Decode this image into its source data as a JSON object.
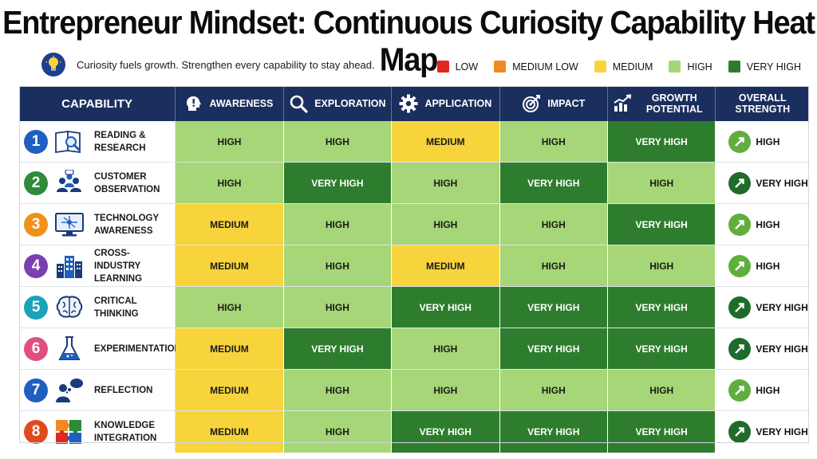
{
  "title": "Entrepreneur Mindset: Continuous Curiosity Capability Heat Map",
  "subtitle": "Curiosity fuels growth. Strengthen every capability to stay ahead.",
  "icons": {
    "subtitle": "lightbulb-icon"
  },
  "legend": [
    {
      "label": "LOW",
      "color": "#e0281e"
    },
    {
      "label": "MEDIUM LOW",
      "color": "#f08a24"
    },
    {
      "label": "MEDIUM",
      "color": "#f8d43c"
    },
    {
      "label": "HIGH",
      "color": "#a6d677"
    },
    {
      "label": "VERY HIGH",
      "color": "#2e7d2e"
    }
  ],
  "level_colors": {
    "LOW": {
      "bg": "#e0281e",
      "fg": "#ffffff"
    },
    "MEDIUM LOW": {
      "bg": "#f08a24",
      "fg": "#111111"
    },
    "MEDIUM": {
      "bg": "#f8d43c",
      "fg": "#1a1a1a"
    },
    "HIGH": {
      "bg": "#a6d677",
      "fg": "#1a1a1a"
    },
    "VERY HIGH": {
      "bg": "#2e7d2e",
      "fg": "#ffffff"
    }
  },
  "header_color": "#1b2f5e",
  "chart_data": {
    "type": "heatmap",
    "title": "Entrepreneur Mindset: Continuous Curiosity Capability Heat Map",
    "subtitle": "Curiosity fuels growth. Strengthen every capability to stay ahead.",
    "row_header": "CAPABILITY",
    "columns": [
      {
        "label": "AWARENESS",
        "icon": "head-exclamation-icon"
      },
      {
        "label": "EXPLORATION",
        "icon": "magnifier-icon"
      },
      {
        "label": "APPLICATION",
        "icon": "gear-icon"
      },
      {
        "label": "IMPACT",
        "icon": "target-icon"
      },
      {
        "label": "GROWTH POTENTIAL",
        "icon": "bar-chart-icon"
      }
    ],
    "overall_header": "OVERALL STRENGTH",
    "scale": [
      "LOW",
      "MEDIUM LOW",
      "MEDIUM",
      "HIGH",
      "VERY HIGH"
    ],
    "rows": [
      {
        "num": "1",
        "label": "READING & RESEARCH",
        "icon": "book-magnifier-icon",
        "num_color": "#1f5fbf",
        "values": [
          "HIGH",
          "HIGH",
          "MEDIUM",
          "HIGH",
          "VERY HIGH"
        ],
        "overall": "HIGH"
      },
      {
        "num": "2",
        "label": "CUSTOMER OBSERVATION",
        "icon": "people-icon",
        "num_color": "#2e8b3a",
        "values": [
          "HIGH",
          "VERY HIGH",
          "HIGH",
          "VERY HIGH",
          "HIGH"
        ],
        "overall": "VERY HIGH"
      },
      {
        "num": "3",
        "label": "TECHNOLOGY AWARENESS",
        "icon": "monitor-icon",
        "num_color": "#f0911e",
        "values": [
          "MEDIUM",
          "HIGH",
          "HIGH",
          "HIGH",
          "VERY HIGH"
        ],
        "overall": "HIGH"
      },
      {
        "num": "4",
        "label": "CROSS-INDUSTRY LEARNING",
        "icon": "buildings-icon",
        "num_color": "#7a3fb0",
        "values": [
          "MEDIUM",
          "HIGH",
          "MEDIUM",
          "HIGH",
          "HIGH"
        ],
        "overall": "HIGH"
      },
      {
        "num": "5",
        "label": "CRITICAL THINKING",
        "icon": "brain-icon",
        "num_color": "#1aa3b8",
        "values": [
          "HIGH",
          "HIGH",
          "VERY HIGH",
          "VERY HIGH",
          "VERY HIGH"
        ],
        "overall": "VERY HIGH"
      },
      {
        "num": "6",
        "label": "EXPERIMENTATION",
        "icon": "flask-icon",
        "num_color": "#e0507e",
        "values": [
          "MEDIUM",
          "VERY HIGH",
          "HIGH",
          "VERY HIGH",
          "VERY HIGH"
        ],
        "overall": "VERY HIGH"
      },
      {
        "num": "7",
        "label": "REFLECTION",
        "icon": "thinking-person-icon",
        "num_color": "#1f5fbf",
        "values": [
          "MEDIUM",
          "HIGH",
          "HIGH",
          "HIGH",
          "HIGH"
        ],
        "overall": "HIGH"
      },
      {
        "num": "8",
        "label": "KNOWLEDGE INTEGRATION",
        "icon": "puzzle-icon",
        "num_color": "#e04a1e",
        "values": [
          "MEDIUM",
          "HIGH",
          "VERY HIGH",
          "VERY HIGH",
          "VERY HIGH"
        ],
        "overall": "VERY HIGH"
      }
    ]
  }
}
